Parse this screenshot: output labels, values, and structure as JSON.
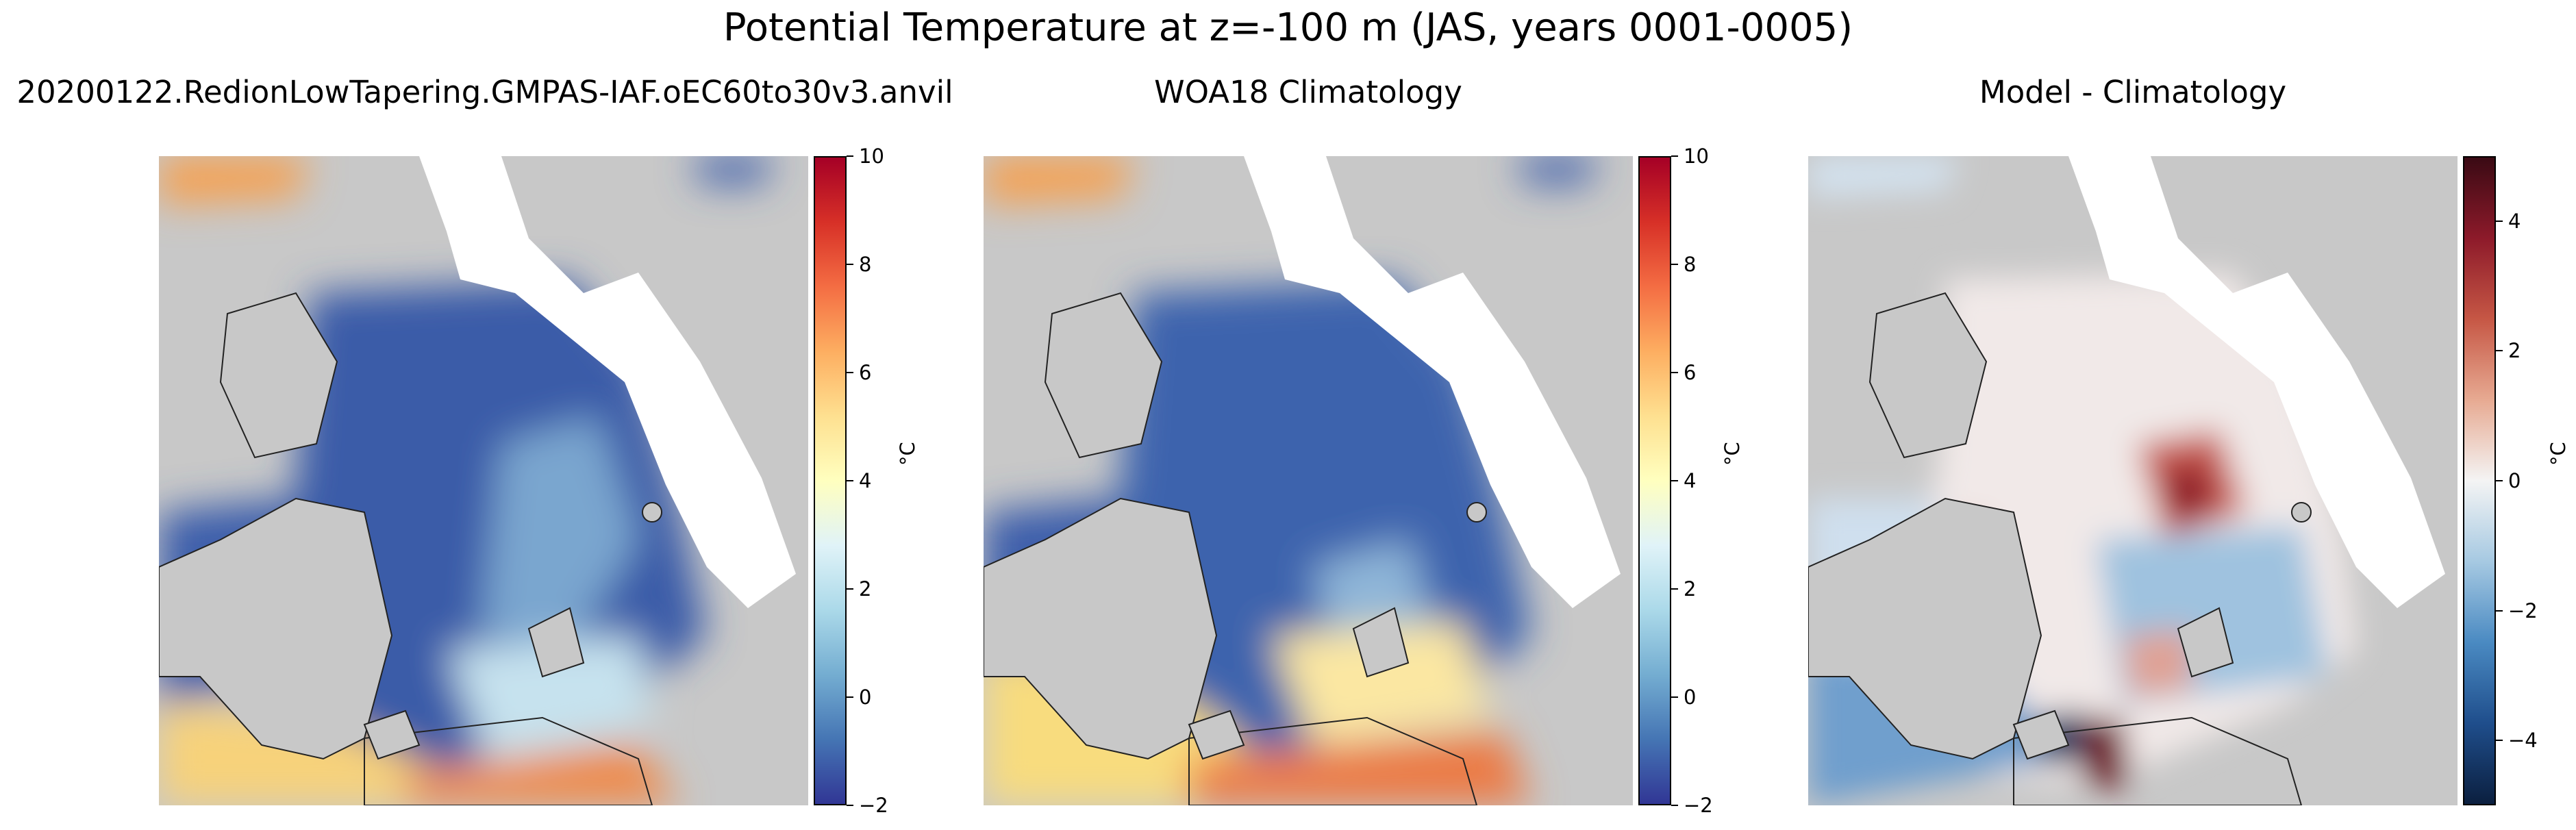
{
  "suptitle": "Potential Temperature at z=-100 m (JAS, years 0001-0005)",
  "panels": [
    {
      "title": "20200122.RedionLowTapering.GMPAS-IAF.oEC60to30v3.anvil",
      "colormap": "RdYlBu_r"
    },
    {
      "title": "WOA18 Climatology",
      "colormap": "RdYlBu_r"
    },
    {
      "title": "Model - Climatology",
      "colormap": "RdBu_r"
    }
  ],
  "colorbars": [
    {
      "label": "°C",
      "min": -2,
      "max": 10,
      "ticks": [
        "10",
        "8",
        "6",
        "4",
        "2",
        "0",
        "−2"
      ]
    },
    {
      "label": "°C",
      "min": -2,
      "max": 10,
      "ticks": [
        "10",
        "8",
        "6",
        "4",
        "2",
        "0",
        "−2"
      ]
    },
    {
      "label": "°C",
      "min": -5,
      "max": 5,
      "ticks": [
        "4",
        "2",
        "0",
        "−2",
        "−4"
      ]
    }
  ],
  "chart_data": [
    {
      "type": "heatmap",
      "title": "20200122.RedionLowTapering.GMPAS-IAF.oEC60to30v3.anvil",
      "colorbar_label": "°C",
      "clim": [
        -2,
        10
      ],
      "colorbar_ticks": [
        -2,
        0,
        2,
        4,
        6,
        8,
        10
      ]
    },
    {
      "type": "heatmap",
      "title": "WOA18 Climatology",
      "colorbar_label": "°C",
      "clim": [
        -2,
        10
      ],
      "colorbar_ticks": [
        -2,
        0,
        2,
        4,
        6,
        8,
        10
      ]
    },
    {
      "type": "heatmap",
      "title": "Model - Climatology",
      "colorbar_label": "°C",
      "clim": [
        -5,
        5
      ],
      "colorbar_ticks": [
        -4,
        -2,
        0,
        2,
        4
      ]
    }
  ],
  "colors": {
    "land": "#c8c8c8",
    "no_data": "#ffffff",
    "cold": "#3d5fab",
    "warm": "#e8643c",
    "diff_pos": "#b2182b",
    "diff_neg": "#2166ac"
  }
}
